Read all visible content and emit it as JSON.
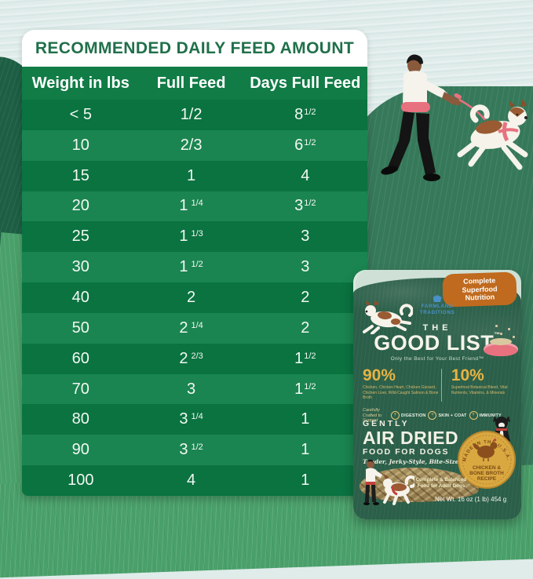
{
  "header": {
    "title": "RECOMMENDED DAILY FEED AMOUNT"
  },
  "table": {
    "columns": [
      "Weight in lbs",
      "Full Feed",
      "Days Full Feed"
    ],
    "rows": [
      {
        "weight": "< 5",
        "full": {
          "base": "1/2",
          "sup": ""
        },
        "days": {
          "base": "8",
          "sup": "1/2"
        }
      },
      {
        "weight": "10",
        "full": {
          "base": "2/3",
          "sup": ""
        },
        "days": {
          "base": "6",
          "sup": "1/2"
        }
      },
      {
        "weight": "15",
        "full": {
          "base": "1",
          "sup": ""
        },
        "days": {
          "base": "4",
          "sup": ""
        }
      },
      {
        "weight": "20",
        "full": {
          "base": "1",
          "sup": "1/4"
        },
        "days": {
          "base": "3",
          "sup": "1/2"
        }
      },
      {
        "weight": "25",
        "full": {
          "base": "1",
          "sup": "1/3"
        },
        "days": {
          "base": "3",
          "sup": ""
        }
      },
      {
        "weight": "30",
        "full": {
          "base": "1",
          "sup": "1/2"
        },
        "days": {
          "base": "3",
          "sup": ""
        }
      },
      {
        "weight": "40",
        "full": {
          "base": "2",
          "sup": ""
        },
        "days": {
          "base": "2",
          "sup": ""
        }
      },
      {
        "weight": "50",
        "full": {
          "base": "2",
          "sup": "1/4"
        },
        "days": {
          "base": "2",
          "sup": ""
        }
      },
      {
        "weight": "60",
        "full": {
          "base": "2",
          "sup": "2/3"
        },
        "days": {
          "base": "1",
          "sup": "1/2"
        }
      },
      {
        "weight": "70",
        "full": {
          "base": "3",
          "sup": ""
        },
        "days": {
          "base": "1",
          "sup": "1/2"
        }
      },
      {
        "weight": "80",
        "full": {
          "base": "3",
          "sup": "1/4"
        },
        "days": {
          "base": "1",
          "sup": ""
        }
      },
      {
        "weight": "90",
        "full": {
          "base": "3",
          "sup": "1/2"
        },
        "days": {
          "base": "1",
          "sup": ""
        }
      },
      {
        "weight": "100",
        "full": {
          "base": "4",
          "sup": ""
        },
        "days": {
          "base": "1",
          "sup": ""
        }
      }
    ]
  },
  "chart_data": {
    "type": "table",
    "title": "RECOMMENDED DAILY FEED AMOUNT",
    "columns": [
      "Weight in lbs",
      "Full Feed",
      "Days Full Feed"
    ],
    "rows": [
      [
        "< 5",
        "1/2",
        "8 1/2"
      ],
      [
        "10",
        "2/3",
        "6 1/2"
      ],
      [
        "15",
        "1",
        "4"
      ],
      [
        "20",
        "1 1/4",
        "3 1/2"
      ],
      [
        "25",
        "1 1/3",
        "3"
      ],
      [
        "30",
        "1 1/2",
        "3"
      ],
      [
        "40",
        "2",
        "2"
      ],
      [
        "50",
        "2 1/4",
        "2"
      ],
      [
        "60",
        "2 2/3",
        "1 1/2"
      ],
      [
        "70",
        "3",
        "1 1/2"
      ],
      [
        "80",
        "3 1/4",
        "1"
      ],
      [
        "90",
        "3 1/2",
        "1"
      ],
      [
        "100",
        "4",
        "1"
      ]
    ]
  },
  "package": {
    "badge": "Complete Superfood Nutrition",
    "brand_line1": "FARMLAND",
    "brand_line2": "TRADITIONS",
    "title_the": "THE",
    "title_main": "GOOD LIST",
    "title_tm": "™",
    "tagline": "Only the Best for Your Best Friend™",
    "stat_left_pct": "90%",
    "stat_left_desc": "Chicken, Chicken Heart, Chicken Gizzard, Chicken Liver, Wild-Caught Salmon & Bone Broth",
    "stat_right_pct": "10%",
    "stat_right_desc": "Superfood Botanical Blend, Vital Nutrients, Vitamins, & Minerals",
    "crafted": "Carefully Crafted to Support",
    "benefit_1": "DIGESTION",
    "benefit_2": "SKIN + COAT",
    "benefit_3": "IMMUNITY",
    "gently": "GENTLY",
    "air_dried": "AIR DRIED",
    "food_for_dogs": "FOOD FOR DOGS",
    "morsels": "Tender, Jerky-Style, Bite-Sized Morsels",
    "seal_arc_top": "MADE IN THE U.S.A. WITH",
    "seal_line1": "CHICKEN &",
    "seal_line2": "BONE BROTH",
    "seal_line3": "RECIPE",
    "complete_line": "Complete & Balanced Food for Adult Dogs",
    "net_weight": "Net Wt. 16 oz (1 lb) 454 g"
  },
  "colors": {
    "sky": "#dfecea",
    "hill_dark": "#1d5f44",
    "grass_medium": "#36795a",
    "grass_light": "#4aa06a",
    "table_header_green": "#117c46",
    "table_row_dark": "#0a7340",
    "table_row_light": "#1a8550",
    "title_green": "#20704a",
    "package_green": "#2b5f49",
    "badge_orange": "#bf6a1e",
    "gold": "#e8b343",
    "pink": "#e8717f",
    "brand_blue": "#4a90c8"
  }
}
